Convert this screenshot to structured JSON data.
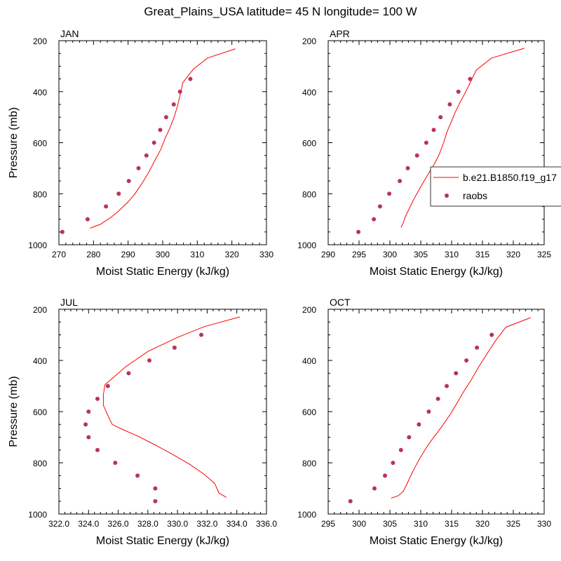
{
  "title": "Great_Plains_USA  latitude= 45 N longitude= 100 W",
  "legend": {
    "model_label": "b.e21.B1850.f19_g17",
    "obs_label": "raobs",
    "model_color": "#ff0000",
    "obs_color": "#b8345a"
  },
  "chart_data": [
    {
      "type": "line",
      "panel_label": "JAN",
      "xlabel": "Moist Static Energy (kJ/kg)",
      "ylabel": "Pressure (mb)",
      "xlim": [
        270,
        330
      ],
      "ylim": [
        1000,
        200
      ],
      "xticks": [
        "270",
        "280",
        "290",
        "300",
        "310",
        "320",
        "330"
      ],
      "yticks": [
        "200",
        "400",
        "600",
        "800",
        "1000"
      ],
      "series": [
        {
          "kind": "line",
          "points": [
            [
              279,
              935
            ],
            [
              282,
              920
            ],
            [
              285,
              893
            ],
            [
              287.5,
              865
            ],
            [
              290,
              832
            ],
            [
              292,
              800
            ],
            [
              294,
              760
            ],
            [
              296,
              715
            ],
            [
              297.7,
              670
            ],
            [
              299.5,
              625
            ],
            [
              300.8,
              580
            ],
            [
              302,
              545
            ],
            [
              303.3,
              500
            ],
            [
              304.2,
              460
            ],
            [
              305,
              415
            ],
            [
              305.8,
              365
            ],
            [
              307.5,
              335
            ],
            [
              309,
              310
            ],
            [
              313,
              268
            ],
            [
              321,
              232
            ]
          ]
        },
        {
          "kind": "scatter",
          "points": [
            [
              271,
              950
            ],
            [
              278.3,
              900
            ],
            [
              283.6,
              850
            ],
            [
              287.3,
              800
            ],
            [
              290.2,
              750
            ],
            [
              293,
              700
            ],
            [
              295.3,
              650
            ],
            [
              297.5,
              600
            ],
            [
              299.3,
              550
            ],
            [
              301,
              500
            ],
            [
              303.2,
              450
            ],
            [
              305,
              400
            ],
            [
              308,
              350
            ]
          ]
        }
      ]
    },
    {
      "type": "line",
      "panel_label": "APR",
      "xlabel": "Moist Static Energy (kJ/kg)",
      "ylabel": "",
      "xlim": [
        290,
        325
      ],
      "ylim": [
        1000,
        200
      ],
      "xticks": [
        "290",
        "295",
        "300",
        "305",
        "310",
        "315",
        "320",
        "325"
      ],
      "yticks": [
        "200",
        "400",
        "600",
        "800",
        "1000"
      ],
      "series": [
        {
          "kind": "line",
          "points": [
            [
              301.8,
              932
            ],
            [
              302.1,
              918
            ],
            [
              302.5,
              890
            ],
            [
              303.1,
              860
            ],
            [
              303.8,
              825
            ],
            [
              304.6,
              790
            ],
            [
              305.5,
              752
            ],
            [
              306.4,
              715
            ],
            [
              307.3,
              680
            ],
            [
              308,
              645
            ],
            [
              308.7,
              600
            ],
            [
              309.3,
              555
            ],
            [
              310,
              515
            ],
            [
              310.6,
              480
            ],
            [
              311.4,
              440
            ],
            [
              312.3,
              400
            ],
            [
              313.2,
              355
            ],
            [
              314,
              315
            ],
            [
              316.5,
              268
            ],
            [
              321.8,
              230
            ]
          ]
        },
        {
          "kind": "scatter",
          "points": [
            [
              294.9,
              950
            ],
            [
              297.4,
              900
            ],
            [
              298.4,
              850
            ],
            [
              299.9,
              800
            ],
            [
              301.6,
              750
            ],
            [
              302.9,
              700
            ],
            [
              304.4,
              650
            ],
            [
              305.9,
              600
            ],
            [
              307.1,
              550
            ],
            [
              308.2,
              500
            ],
            [
              309.7,
              450
            ],
            [
              311.1,
              400
            ],
            [
              313,
              350
            ]
          ]
        }
      ]
    },
    {
      "type": "line",
      "panel_label": "JUL",
      "xlabel": "Moist Static Energy (kJ/kg)",
      "ylabel": "Pressure (mb)",
      "xlim": [
        322.0,
        336.0
      ],
      "ylim": [
        1000,
        200
      ],
      "xticks": [
        "322.0",
        "324.0",
        "326.0",
        "328.0",
        "330.0",
        "332.0",
        "334.0",
        "336.0"
      ],
      "yticks": [
        "200",
        "400",
        "600",
        "800",
        "1000"
      ],
      "series": [
        {
          "kind": "line",
          "points": [
            [
              333.3,
              935
            ],
            [
              332.8,
              918
            ],
            [
              332.5,
              880
            ],
            [
              331.8,
              845
            ],
            [
              330.8,
              805
            ],
            [
              329.6,
              765
            ],
            [
              328.5,
              730
            ],
            [
              327.3,
              695
            ],
            [
              326.3,
              670
            ],
            [
              325.6,
              650
            ],
            [
              325.3,
              615
            ],
            [
              325,
              575
            ],
            [
              325,
              535
            ],
            [
              325.1,
              495
            ],
            [
              325.7,
              465
            ],
            [
              326.5,
              425
            ],
            [
              328,
              365
            ],
            [
              330,
              310
            ],
            [
              331.8,
              268
            ],
            [
              334.2,
              230
            ]
          ]
        },
        {
          "kind": "scatter",
          "points": [
            [
              328.5,
              950
            ],
            [
              328.5,
              900
            ],
            [
              327.3,
              850
            ],
            [
              325.8,
              800
            ],
            [
              324.6,
              750
            ],
            [
              324,
              700
            ],
            [
              323.8,
              650
            ],
            [
              324,
              600
            ],
            [
              324.6,
              550
            ],
            [
              325.3,
              500
            ],
            [
              326.7,
              450
            ],
            [
              328.1,
              400
            ],
            [
              329.8,
              350
            ],
            [
              331.6,
              300
            ]
          ]
        }
      ]
    },
    {
      "type": "line",
      "panel_label": "OCT",
      "xlabel": "Moist Static Energy (kJ/kg)",
      "ylabel": "",
      "xlim": [
        295,
        330
      ],
      "ylim": [
        1000,
        200
      ],
      "xticks": [
        "295",
        "300",
        "305",
        "310",
        "315",
        "320",
        "325",
        "330"
      ],
      "yticks": [
        "200",
        "400",
        "600",
        "800",
        "1000"
      ],
      "series": [
        {
          "kind": "line",
          "points": [
            [
              305.2,
              938
            ],
            [
              306.4,
              928
            ],
            [
              307.2,
              910
            ],
            [
              307.7,
              885
            ],
            [
              308.3,
              855
            ],
            [
              309,
              820
            ],
            [
              309.8,
              785
            ],
            [
              310.8,
              745
            ],
            [
              311.8,
              710
            ],
            [
              312.9,
              675
            ],
            [
              313.8,
              645
            ],
            [
              314.8,
              610
            ],
            [
              315.8,
              570
            ],
            [
              317,
              520
            ],
            [
              318.2,
              475
            ],
            [
              319.4,
              425
            ],
            [
              320.7,
              375
            ],
            [
              322.2,
              320
            ],
            [
              323.8,
              270
            ],
            [
              327.8,
              233
            ]
          ]
        },
        {
          "kind": "scatter",
          "points": [
            [
              298.6,
              950
            ],
            [
              302.5,
              900
            ],
            [
              304.2,
              850
            ],
            [
              305.5,
              800
            ],
            [
              306.8,
              750
            ],
            [
              308.1,
              700
            ],
            [
              309.7,
              650
            ],
            [
              311.3,
              600
            ],
            [
              312.8,
              550
            ],
            [
              314.2,
              500
            ],
            [
              315.7,
              450
            ],
            [
              317.4,
              400
            ],
            [
              319.1,
              350
            ],
            [
              321.5,
              300
            ]
          ]
        }
      ]
    }
  ]
}
